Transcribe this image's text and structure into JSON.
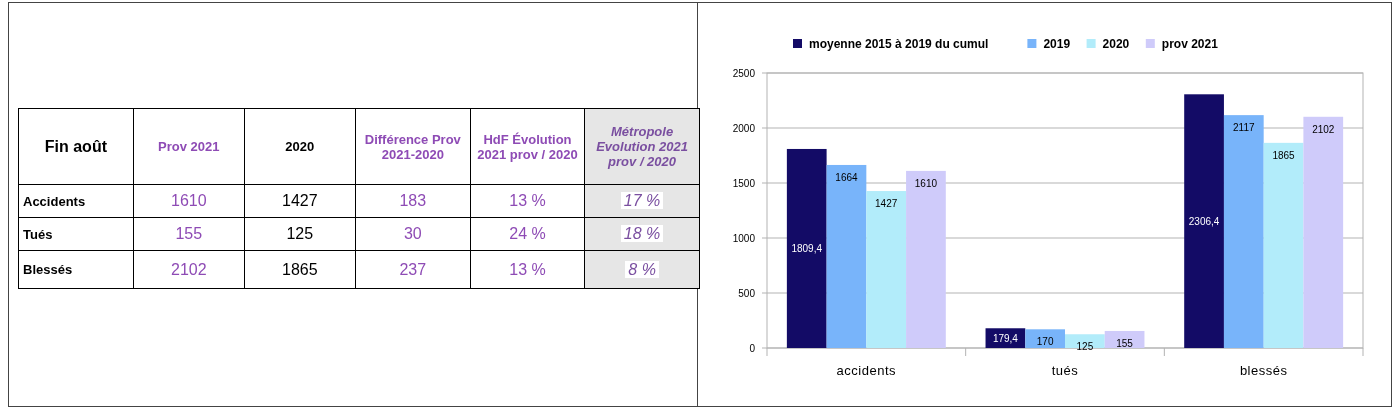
{
  "chart_data": [
    {
      "type": "other",
      "categories": [
        "Fin août",
        "Prov 2021",
        "2020",
        "Différence Prov 2021-2020",
        "HdF Évolution 2021 prov / 2020",
        "Métropole Evolution 2021 prov / 2020"
      ],
      "colors": [
        "#ffffff",
        "#ffffff",
        "#ffffff",
        "#ffffff",
        "#ffffff",
        "#e6e6e6"
      ],
      "y_categories": [
        "Accidents",
        "Tués",
        "Blessés"
      ],
      "cell_labels": [
        [
          "1610",
          "1427",
          "183",
          "13 %",
          "17 %"
        ],
        [
          "155",
          "125",
          "30",
          "24 %",
          "18 %"
        ],
        [
          "2102",
          "1865",
          "237",
          "13 %",
          "8 %"
        ]
      ]
    },
    {
      "type": "bar",
      "categories": [
        "accidents",
        "tués",
        "blessés"
      ],
      "series": [
        {
          "name": "moyenne 2015 à 2019 du cumul",
          "color": "#130b66",
          "values": [
            1809.4,
            179.4,
            2306.4
          ],
          "value_labels": [
            "1809,4",
            "179,4",
            "2306,4"
          ]
        },
        {
          "name": "2019",
          "color": "#78b4fa",
          "values": [
            1664,
            170,
            2117
          ],
          "value_labels": [
            "1664",
            "170",
            "2117"
          ]
        },
        {
          "name": "2020",
          "color": "#b2ecfa",
          "values": [
            1427,
            125,
            1865
          ],
          "value_labels": [
            "1427",
            "125",
            "1865"
          ]
        },
        {
          "name": "prov 2021",
          "color": "#cfcbfa",
          "values": [
            1610,
            155,
            2102
          ],
          "value_labels": [
            "1610",
            "155",
            "2102"
          ]
        }
      ],
      "ylim": [
        0,
        2500
      ],
      "yticks": [
        0,
        500,
        1000,
        1500,
        2000,
        2500
      ],
      "grid": "y",
      "legend": "top"
    }
  ]
}
